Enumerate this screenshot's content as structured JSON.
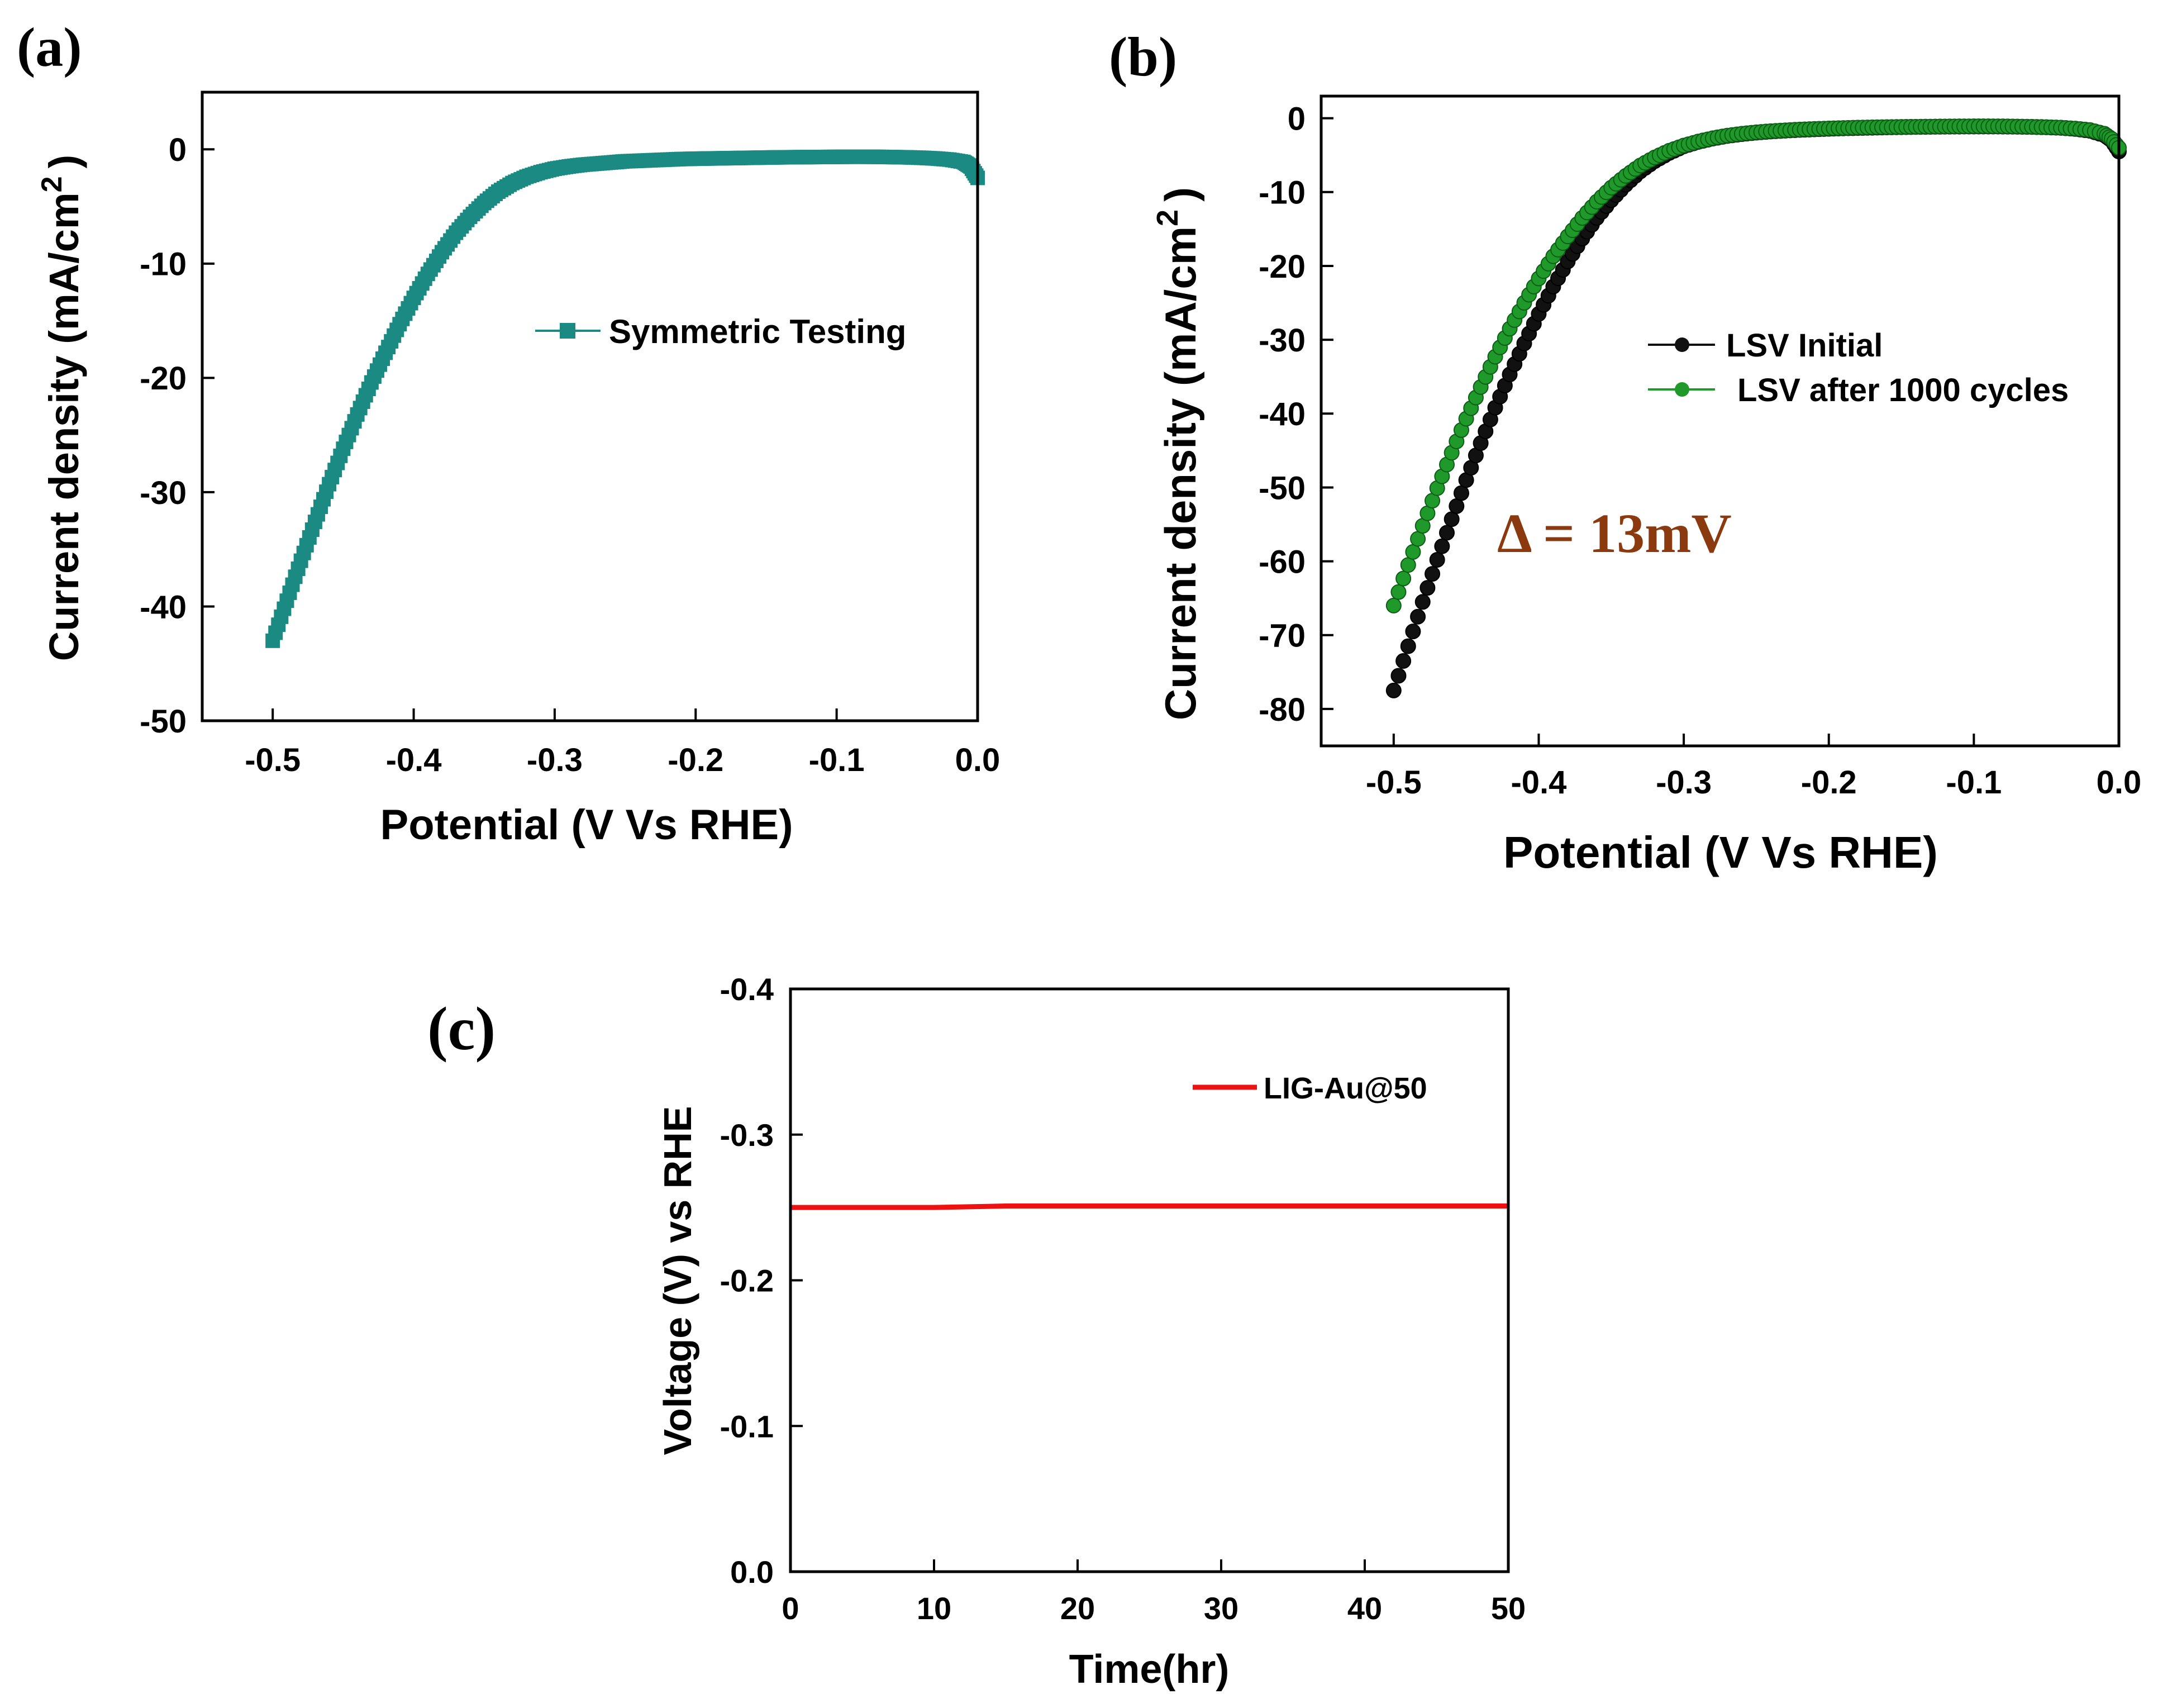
{
  "chart_data": [
    {
      "id": "a",
      "type": "scatter",
      "panel_label": "(a)",
      "xlabel": "Potential (V Vs RHE)",
      "ylabel": "Current density (mA/cm",
      "ylabel_sup": "2",
      "ylabel_close": ")",
      "xlim": [
        -0.55,
        0.0
      ],
      "ylim": [
        -50,
        5
      ],
      "xticks": [
        -0.5,
        -0.4,
        -0.3,
        -0.2,
        -0.1,
        0.0
      ],
      "xtick_labels": [
        "-0.5",
        "-0.4",
        "-0.3",
        "-0.2",
        "-0.1",
        "0.0"
      ],
      "yticks": [
        0,
        -10,
        -20,
        -30,
        -40,
        -50
      ],
      "ytick_labels": [
        "0",
        "-10",
        "-20",
        "-30",
        "-40",
        "-50"
      ],
      "series": [
        {
          "name": "Symmetric Testing",
          "color": "#1a8a82",
          "marker": "square",
          "x": [
            -0.5,
            -0.49,
            -0.48,
            -0.47,
            -0.46,
            -0.45,
            -0.44,
            -0.43,
            -0.42,
            -0.41,
            -0.4,
            -0.39,
            -0.38,
            -0.37,
            -0.36,
            -0.35,
            -0.34,
            -0.33,
            -0.32,
            -0.31,
            -0.3,
            -0.29,
            -0.28,
            -0.27,
            -0.26,
            -0.25,
            -0.24,
            -0.23,
            -0.22,
            -0.21,
            -0.2,
            -0.19,
            -0.18,
            -0.17,
            -0.16,
            -0.15,
            -0.14,
            -0.13,
            -0.12,
            -0.11,
            -0.1,
            -0.09,
            -0.08,
            -0.07,
            -0.06,
            -0.05,
            -0.04,
            -0.03,
            -0.02,
            -0.01,
            -0.005,
            0.0
          ],
          "y": [
            -43.0,
            -39.5,
            -36.0,
            -32.6,
            -29.3,
            -26.2,
            -23.2,
            -20.4,
            -17.8,
            -15.3,
            -13.0,
            -10.9,
            -9.0,
            -7.3,
            -5.9,
            -4.7,
            -3.7,
            -2.95,
            -2.4,
            -2.0,
            -1.7,
            -1.5,
            -1.35,
            -1.25,
            -1.15,
            -1.05,
            -1.0,
            -0.95,
            -0.9,
            -0.85,
            -0.82,
            -0.8,
            -0.78,
            -0.76,
            -0.74,
            -0.72,
            -0.7,
            -0.69,
            -0.68,
            -0.67,
            -0.66,
            -0.65,
            -0.65,
            -0.66,
            -0.68,
            -0.7,
            -0.74,
            -0.8,
            -0.9,
            -1.1,
            -1.5,
            -2.5
          ]
        }
      ]
    },
    {
      "id": "b",
      "type": "scatter",
      "panel_label": "(b)",
      "xlabel": "Potential (V Vs RHE)",
      "ylabel": "Current density (mA/cm",
      "ylabel_sup": "2",
      "ylabel_close": ")",
      "annotation": "Δ = 13mV",
      "xlim": [
        -0.55,
        0.0
      ],
      "ylim": [
        -85,
        3
      ],
      "xticks": [
        -0.5,
        -0.4,
        -0.3,
        -0.2,
        -0.1,
        0.0
      ],
      "xtick_labels": [
        "-0.5",
        "-0.4",
        "-0.3",
        "-0.2",
        "-0.1",
        "0.0"
      ],
      "yticks": [
        0,
        -10,
        -20,
        -30,
        -40,
        -50,
        -60,
        -70,
        -80
      ],
      "ytick_labels": [
        "0",
        "-10",
        "-20",
        "-30",
        "-40",
        "-50",
        "-60",
        "-70",
        "-80"
      ],
      "series": [
        {
          "name": "LSV Initial",
          "color": "#111111",
          "marker": "circle",
          "x": [
            -0.5,
            -0.49,
            -0.48,
            -0.47,
            -0.46,
            -0.45,
            -0.44,
            -0.43,
            -0.42,
            -0.41,
            -0.4,
            -0.39,
            -0.38,
            -0.37,
            -0.36,
            -0.35,
            -0.34,
            -0.33,
            -0.32,
            -0.31,
            -0.3,
            -0.29,
            -0.28,
            -0.27,
            -0.26,
            -0.25,
            -0.24,
            -0.23,
            -0.22,
            -0.21,
            -0.2,
            -0.19,
            -0.18,
            -0.17,
            -0.16,
            -0.15,
            -0.14,
            -0.13,
            -0.12,
            -0.11,
            -0.1,
            -0.09,
            -0.08,
            -0.07,
            -0.06,
            -0.05,
            -0.04,
            -0.03,
            -0.02,
            -0.01,
            -0.005,
            0.0
          ],
          "y": [
            -77.5,
            -71.5,
            -65.5,
            -59.8,
            -54.3,
            -49.0,
            -44.0,
            -39.2,
            -34.7,
            -30.5,
            -26.5,
            -22.8,
            -19.4,
            -16.3,
            -13.5,
            -11.1,
            -9.0,
            -7.2,
            -5.8,
            -4.7,
            -3.8,
            -3.2,
            -2.75,
            -2.4,
            -2.15,
            -1.95,
            -1.8,
            -1.68,
            -1.58,
            -1.5,
            -1.43,
            -1.37,
            -1.32,
            -1.28,
            -1.24,
            -1.21,
            -1.18,
            -1.16,
            -1.14,
            -1.13,
            -1.12,
            -1.12,
            -1.13,
            -1.15,
            -1.18,
            -1.23,
            -1.3,
            -1.45,
            -1.7,
            -2.3,
            -3.0,
            -4.5
          ]
        },
        {
          "name": "LSV after 1000 cycles",
          "color": "#1f9a2a",
          "marker": "circle",
          "x": [
            -0.5,
            -0.49,
            -0.48,
            -0.47,
            -0.46,
            -0.45,
            -0.44,
            -0.43,
            -0.42,
            -0.41,
            -0.4,
            -0.39,
            -0.38,
            -0.37,
            -0.36,
            -0.35,
            -0.34,
            -0.33,
            -0.32,
            -0.31,
            -0.3,
            -0.29,
            -0.28,
            -0.27,
            -0.26,
            -0.25,
            -0.24,
            -0.23,
            -0.22,
            -0.21,
            -0.2,
            -0.19,
            -0.18,
            -0.17,
            -0.16,
            -0.15,
            -0.14,
            -0.13,
            -0.12,
            -0.11,
            -0.1,
            -0.09,
            -0.08,
            -0.07,
            -0.06,
            -0.05,
            -0.04,
            -0.03,
            -0.02,
            -0.01,
            -0.005,
            0.0
          ],
          "y": [
            -66.0,
            -60.5,
            -55.2,
            -50.1,
            -45.3,
            -40.7,
            -36.4,
            -32.3,
            -28.5,
            -25.0,
            -21.7,
            -18.7,
            -16.0,
            -13.5,
            -11.3,
            -9.4,
            -7.8,
            -6.4,
            -5.3,
            -4.4,
            -3.7,
            -3.15,
            -2.7,
            -2.35,
            -2.1,
            -1.9,
            -1.75,
            -1.63,
            -1.53,
            -1.45,
            -1.38,
            -1.32,
            -1.27,
            -1.23,
            -1.2,
            -1.17,
            -1.15,
            -1.13,
            -1.11,
            -1.1,
            -1.09,
            -1.09,
            -1.1,
            -1.12,
            -1.15,
            -1.2,
            -1.27,
            -1.4,
            -1.6,
            -2.1,
            -2.8,
            -4.0
          ]
        }
      ]
    },
    {
      "id": "c",
      "type": "line",
      "panel_label": "(c)",
      "xlabel": "Time(hr)",
      "ylabel": "Voltage (V) vs RHE",
      "xlim": [
        0,
        50
      ],
      "ylim": [
        0.0,
        -0.4
      ],
      "xticks": [
        0,
        10,
        20,
        30,
        40,
        50
      ],
      "xtick_labels": [
        "0",
        "10",
        "20",
        "30",
        "40",
        "50"
      ],
      "yticks": [
        0.0,
        -0.1,
        -0.2,
        -0.3,
        -0.4
      ],
      "ytick_labels": [
        "0.0",
        "-0.1",
        "-0.2",
        "-0.3",
        "-0.4"
      ],
      "series": [
        {
          "name": "LIG-Au@50",
          "color": "#ee1111",
          "x": [
            0,
            5,
            10,
            15,
            20,
            25,
            30,
            35,
            40,
            45,
            50
          ],
          "y": [
            -0.25,
            -0.25,
            -0.25,
            -0.251,
            -0.251,
            -0.251,
            -0.251,
            -0.251,
            -0.251,
            -0.251,
            -0.251
          ]
        }
      ]
    }
  ]
}
